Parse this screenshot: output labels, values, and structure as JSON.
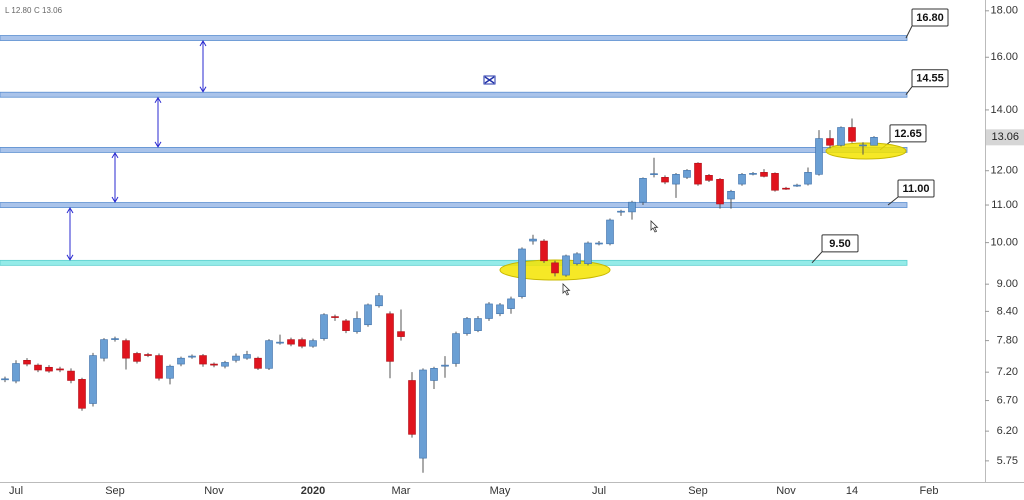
{
  "chart_data": {
    "type": "candlestick",
    "header": [
      "L 12.80",
      "C 13.06"
    ],
    "log_scale": true,
    "ylim": [
      5.45,
      18.5
    ],
    "yticks": [
      {
        "value": 5.75,
        "label": "5.75"
      },
      {
        "value": 6.2,
        "label": "6.20"
      },
      {
        "value": 6.7,
        "label": "6.70"
      },
      {
        "value": 7.2,
        "label": "7.20"
      },
      {
        "value": 7.8,
        "label": "7.80"
      },
      {
        "value": 8.4,
        "label": "8.40"
      },
      {
        "value": 9,
        "label": "9.00"
      },
      {
        "value": 10,
        "label": "10.00"
      },
      {
        "value": 11,
        "label": "11.00"
      },
      {
        "value": 12,
        "label": "12.00"
      },
      {
        "value": 14,
        "label": "14.00"
      },
      {
        "value": 16,
        "label": "16.00"
      },
      {
        "value": 18,
        "label": "18.00"
      }
    ],
    "up_color": "#6a9fd4",
    "down_color": "#e0141e",
    "last_price": 13.06,
    "levels": {
      "values": [
        16.8,
        14.55,
        12.65,
        11,
        9.5
      ],
      "value_labels": [
        "16.80",
        "14.55",
        "12.65",
        "11.00",
        "9.50"
      ],
      "colors": [
        "#a9c3ea",
        "#a9c3ea",
        "#a9c3ea",
        "#a9c3ea",
        "#94ebe8"
      ]
    },
    "categories": [
      null,
      "Jul",
      null,
      null,
      null,
      null,
      null,
      null,
      null,
      null,
      "Sep",
      null,
      null,
      null,
      null,
      null,
      null,
      null,
      null,
      "Nov",
      null,
      null,
      null,
      null,
      null,
      null,
      null,
      null,
      "2020",
      null,
      null,
      null,
      null,
      null,
      null,
      null,
      "Mar",
      null,
      null,
      null,
      null,
      null,
      null,
      null,
      null,
      "May",
      null,
      null,
      null,
      null,
      null,
      null,
      null,
      null,
      "Jul",
      null,
      null,
      null,
      null,
      null,
      null,
      null,
      null,
      "Sep",
      null,
      null,
      null,
      null,
      null,
      null,
      null,
      "Nov",
      null,
      null,
      null,
      null,
      null,
      "14",
      null,
      null,
      null,
      null,
      null,
      null,
      "Feb"
    ],
    "open": [
      7.07,
      7.04,
      7.42,
      7.33,
      7.29,
      7.26,
      7.22,
      7.07,
      6.65,
      7.46,
      7.82,
      7.8,
      7.55,
      7.53,
      7.51,
      7.09,
      7.35,
      7.48,
      7.51,
      7.35,
      7.31,
      7.42,
      7.46,
      7.46,
      7.27,
      7.75,
      7.82,
      7.82,
      7.69,
      7.84,
      8.29,
      8.2,
      7.98,
      8.12,
      8.52,
      8.35,
      7.98,
      7.05,
      5.79,
      7.05,
      7.31,
      7.36,
      7.94,
      8.0,
      8.25,
      8.35,
      8.46,
      8.72,
      10.04,
      10.04,
      9.5,
      9.21,
      9.48,
      9.48,
      9.97,
      9.97,
      10.81,
      10.81,
      11.08,
      11.89,
      11.8,
      11.6,
      11.8,
      12.23,
      11.86,
      11.74,
      11.17,
      11.6,
      11.91,
      11.95,
      11.92,
      11.48,
      11.56,
      11.6,
      11.89,
      13.02,
      12.8,
      13.39,
      12.79,
      12.8,
      null,
      null,
      null,
      null,
      null
    ],
    "high": [
      7.12,
      7.42,
      7.46,
      7.36,
      7.33,
      7.3,
      7.27,
      7.1,
      7.56,
      7.85,
      7.88,
      7.84,
      7.58,
      7.56,
      7.55,
      7.34,
      7.49,
      7.53,
      7.54,
      7.38,
      7.41,
      7.55,
      7.6,
      7.49,
      7.83,
      7.92,
      7.86,
      7.86,
      7.84,
      8.36,
      8.33,
      8.24,
      8.4,
      8.57,
      8.8,
      8.4,
      8.44,
      7.2,
      7.27,
      7.3,
      7.5,
      7.98,
      8.28,
      8.3,
      8.6,
      8.58,
      8.72,
      9.88,
      10.2,
      10.09,
      9.55,
      9.7,
      9.76,
      10.03,
      10.04,
      10.63,
      10.87,
      11.12,
      11.8,
      12.4,
      11.86,
      11.93,
      12.05,
      12.26,
      11.9,
      11.78,
      11.43,
      11.93,
      11.96,
      12.05,
      11.95,
      11.52,
      11.61,
      12.1,
      13.3,
      13.3,
      13.43,
      13.7,
      12.9,
      13.1,
      null,
      null,
      null,
      null,
      null
    ],
    "low": [
      7.02,
      7.0,
      7.31,
      7.2,
      7.19,
      7.2,
      7.0,
      6.53,
      6.6,
      7.4,
      7.78,
      7.25,
      7.36,
      7.48,
      7.05,
      6.98,
      7.31,
      7.45,
      7.3,
      7.29,
      7.27,
      7.38,
      7.43,
      7.24,
      7.24,
      7.72,
      7.69,
      7.65,
      7.66,
      7.8,
      8.2,
      7.95,
      7.94,
      8.08,
      8.48,
      7.09,
      7.8,
      6.1,
      5.58,
      6.9,
      7.1,
      7.3,
      7.9,
      7.97,
      8.2,
      8.3,
      8.35,
      8.68,
      9.95,
      9.5,
      9.18,
      9.17,
      9.44,
      9.44,
      9.93,
      9.93,
      10.7,
      10.6,
      11.0,
      11.8,
      11.6,
      11.2,
      11.75,
      11.55,
      11.66,
      10.9,
      10.9,
      11.55,
      11.86,
      11.8,
      11.38,
      11.43,
      11.52,
      11.56,
      11.85,
      12.7,
      12.76,
      12.88,
      12.5,
      12.8,
      null,
      null,
      null,
      null,
      null
    ],
    "close": [
      7.08,
      7.36,
      7.35,
      7.24,
      7.22,
      7.24,
      7.05,
      6.57,
      7.51,
      7.82,
      7.84,
      7.46,
      7.4,
      7.51,
      7.09,
      7.31,
      7.46,
      7.5,
      7.35,
      7.33,
      7.38,
      7.5,
      7.53,
      7.27,
      7.8,
      7.77,
      7.73,
      7.69,
      7.8,
      8.33,
      8.27,
      8.0,
      8.25,
      8.54,
      8.74,
      7.4,
      7.88,
      6.15,
      7.24,
      7.27,
      7.33,
      7.94,
      8.25,
      8.25,
      8.56,
      8.54,
      8.67,
      9.84,
      10.09,
      9.55,
      9.26,
      9.67,
      9.72,
      9.99,
      9.99,
      10.59,
      10.83,
      11.08,
      11.77,
      11.91,
      11.66,
      11.89,
      12.01,
      11.6,
      11.71,
      11.03,
      11.39,
      11.89,
      11.92,
      11.83,
      11.42,
      11.46,
      11.57,
      11.95,
      13.02,
      12.8,
      13.39,
      12.93,
      12.81,
      13.06,
      null,
      null,
      null,
      null,
      null
    ]
  }
}
